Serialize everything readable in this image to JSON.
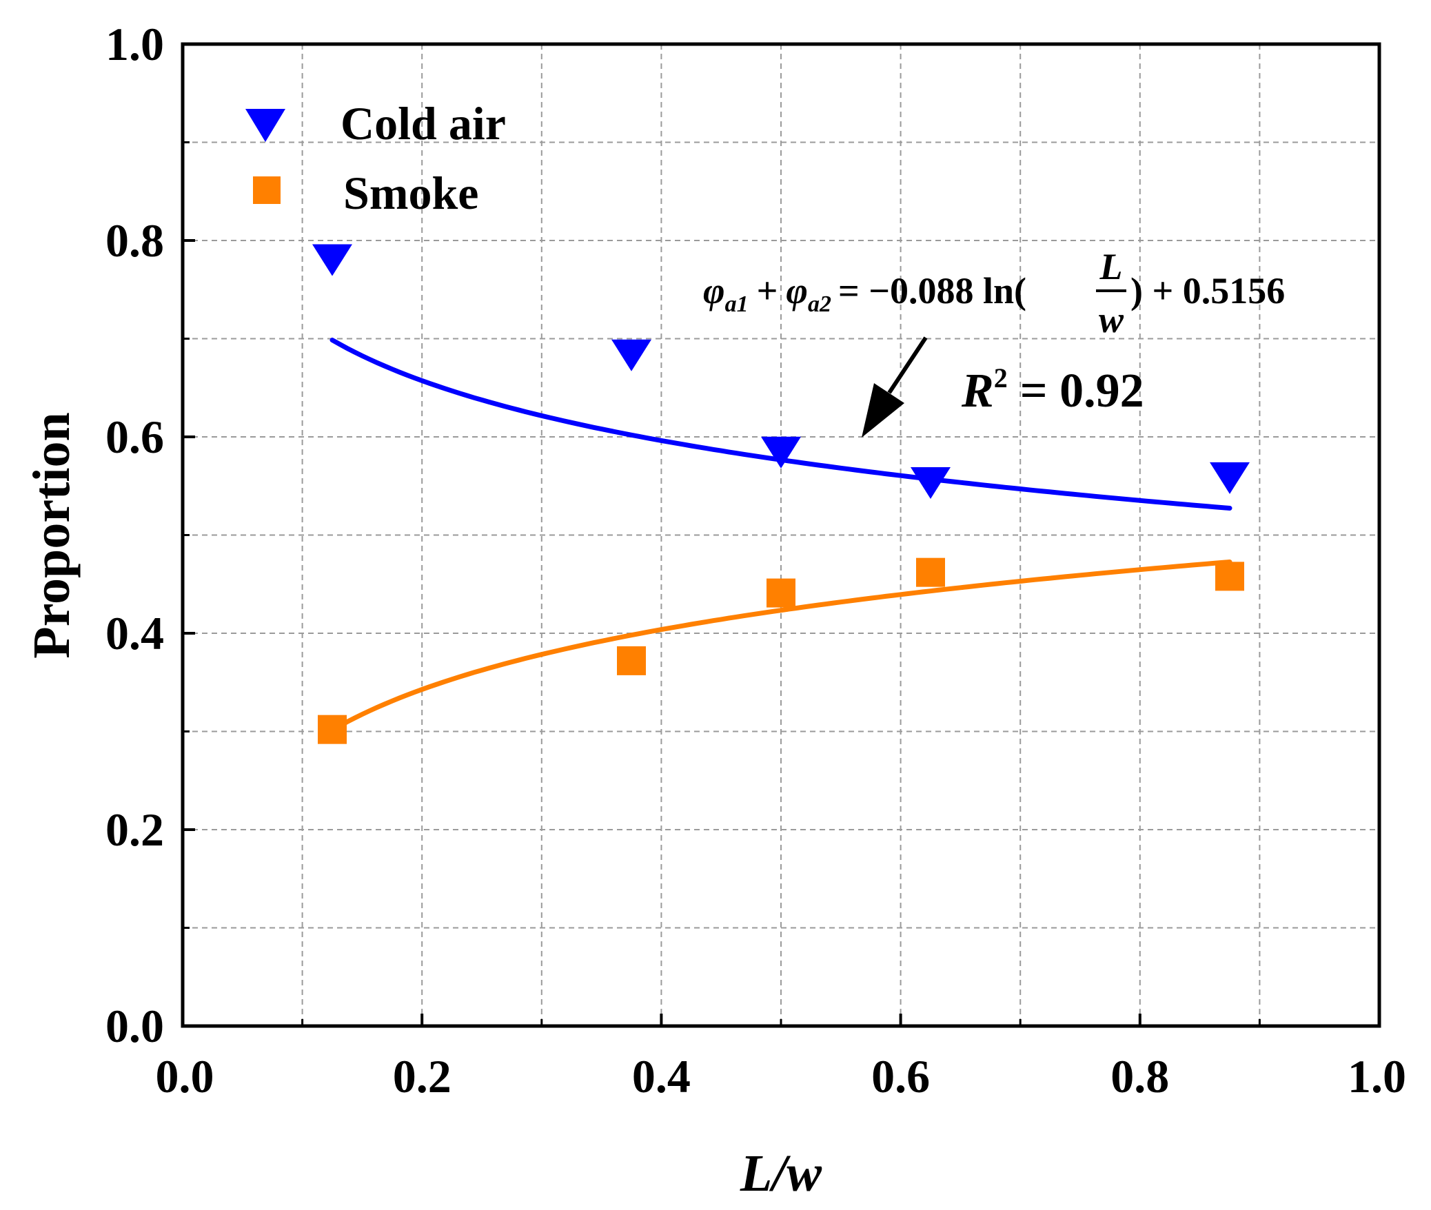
{
  "chart_data": {
    "type": "scatter",
    "title": "",
    "xlabel": "L/w",
    "ylabel": "Proportion",
    "xlim": [
      0.0,
      1.0
    ],
    "ylim": [
      0.0,
      1.0
    ],
    "grid": true,
    "x_major_ticks": [
      "0.0",
      "0.2",
      "0.4",
      "0.6",
      "0.8",
      "1.0"
    ],
    "y_major_ticks": [
      "0.0",
      "0.2",
      "0.4",
      "0.6",
      "0.8",
      "1.0"
    ],
    "x_minor_ticks": [
      0.1,
      0.3,
      0.5,
      0.7,
      0.9
    ],
    "y_minor_ticks": [
      0.1,
      0.3,
      0.5,
      0.7,
      0.9
    ],
    "legend_position": "top-left",
    "series": [
      {
        "name": "Cold air",
        "marker": "triangle-down",
        "color": "#0000ff",
        "x": [
          0.125,
          0.375,
          0.5,
          0.625,
          0.875
        ],
        "y": [
          0.78,
          0.683,
          0.584,
          0.553,
          0.558
        ],
        "fit": {
          "type": "log",
          "a": -0.088,
          "b": 0.5156,
          "x_range": [
            0.125,
            0.875
          ]
        }
      },
      {
        "name": "Smoke",
        "marker": "square",
        "color": "#ff8000",
        "x": [
          0.125,
          0.375,
          0.5,
          0.625,
          0.875
        ],
        "y": [
          0.302,
          0.372,
          0.441,
          0.462,
          0.458
        ],
        "fit": {
          "type": "log",
          "a": 0.088,
          "b": 0.4844,
          "x_range": [
            0.125,
            0.875
          ]
        }
      }
    ],
    "annotation": {
      "lhs_sym1": "φ",
      "lhs_sub1": "a1",
      "plus": "+",
      "lhs_sym2": "φ",
      "lhs_sub2": "a2",
      "rhs_prefix": "= −0.088 ln(",
      "frac_num": "L",
      "frac_den": "w",
      "rhs_suffix": ") + 0.5156",
      "r2_symbol": "R",
      "r2_exp": "2",
      "r2_value": "= 0.92",
      "arrow_target_x": 0.565
    }
  }
}
